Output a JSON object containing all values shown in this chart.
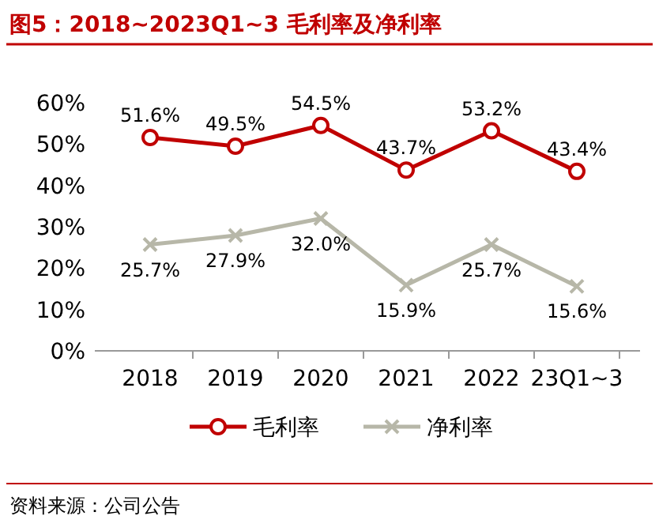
{
  "chart_data": {
    "type": "line",
    "title": "图5：2018~2023Q1~3 毛利率及净利率",
    "categories": [
      "2018",
      "2019",
      "2020",
      "2021",
      "2022",
      "23Q1~3"
    ],
    "series": [
      {
        "name": "毛利率",
        "color": "#c00000",
        "marker": "circle",
        "values": [
          51.6,
          49.5,
          54.5,
          43.7,
          53.2,
          43.4
        ],
        "value_labels": [
          "51.6%",
          "49.5%",
          "54.5%",
          "43.7%",
          "53.2%",
          "43.4%"
        ]
      },
      {
        "name": "净利率",
        "color": "#b7b7a8",
        "marker": "cross",
        "values": [
          25.7,
          27.9,
          32.0,
          15.9,
          25.7,
          15.6
        ],
        "value_labels": [
          "25.7%",
          "27.9%",
          "32.0%",
          "15.9%",
          "25.7%",
          "15.6%"
        ]
      }
    ],
    "ylim": [
      0,
      60
    ],
    "yticks": [
      {
        "value": 0,
        "label": "0%"
      },
      {
        "value": 10,
        "label": "10%"
      },
      {
        "value": 20,
        "label": "20%"
      },
      {
        "value": 30,
        "label": "30%"
      },
      {
        "value": 40,
        "label": "40%"
      },
      {
        "value": 50,
        "label": "50%"
      },
      {
        "value": 60,
        "label": "60%"
      }
    ],
    "grid": false,
    "legend": "bottom",
    "line_style": "solid",
    "annotations": [
      "资料来源：公司公告"
    ]
  }
}
